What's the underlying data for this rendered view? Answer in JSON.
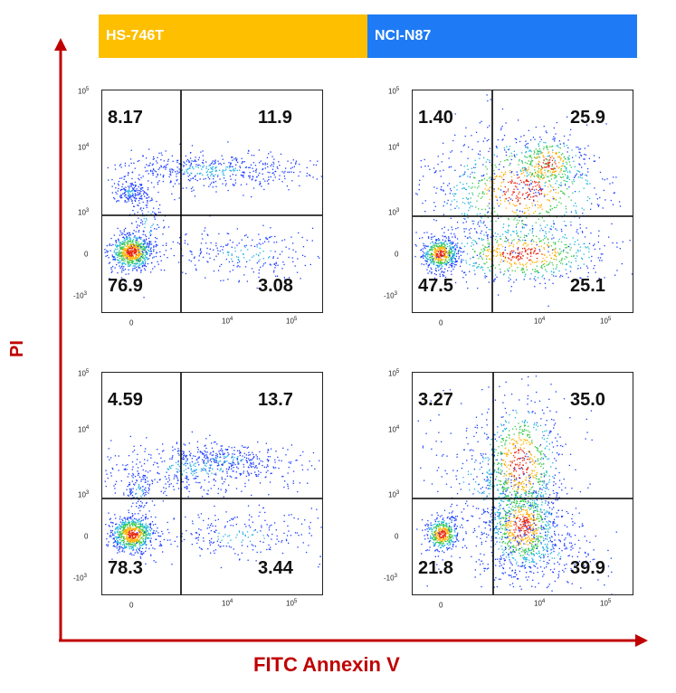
{
  "headers": {
    "left": "HS-746T",
    "right": "NCI-N87"
  },
  "axis_titles": {
    "y": "PI",
    "x": "FITC Annexin V"
  },
  "tick_labels": {
    "y": [
      {
        "base": "10",
        "exp": "5"
      },
      {
        "base": "10",
        "exp": "4"
      },
      {
        "base": "10",
        "exp": "3"
      },
      {
        "base": "0",
        "exp": ""
      },
      {
        "base": "-10",
        "exp": "3"
      }
    ],
    "x": [
      {
        "base": "0",
        "exp": ""
      },
      {
        "base": "10",
        "exp": "4"
      },
      {
        "base": "10",
        "exp": "5"
      }
    ]
  },
  "colors": {
    "hs746t": "#fdbf00",
    "ncin87": "#1e7bf5",
    "axis_arrow": "#c00000",
    "gate": "#000000"
  },
  "chart_data": [
    {
      "type": "scatter",
      "cell_line": "HS-746T",
      "row": 1,
      "quadrants": {
        "upper_left": "8.17",
        "upper_right": "11.9",
        "lower_left": "76.9",
        "lower_right": "3.08"
      }
    },
    {
      "type": "scatter",
      "cell_line": "NCI-N87",
      "row": 1,
      "quadrants": {
        "upper_left": "1.40",
        "upper_right": "25.9",
        "lower_left": "47.5",
        "lower_right": "25.1"
      }
    },
    {
      "type": "scatter",
      "cell_line": "HS-746T",
      "row": 2,
      "quadrants": {
        "upper_left": "4.59",
        "upper_right": "13.7",
        "lower_left": "78.3",
        "lower_right": "3.44"
      }
    },
    {
      "type": "scatter",
      "cell_line": "NCI-N87",
      "row": 2,
      "quadrants": {
        "upper_left": "3.27",
        "upper_right": "35.0",
        "lower_left": "21.8",
        "lower_right": "39.9"
      }
    }
  ]
}
